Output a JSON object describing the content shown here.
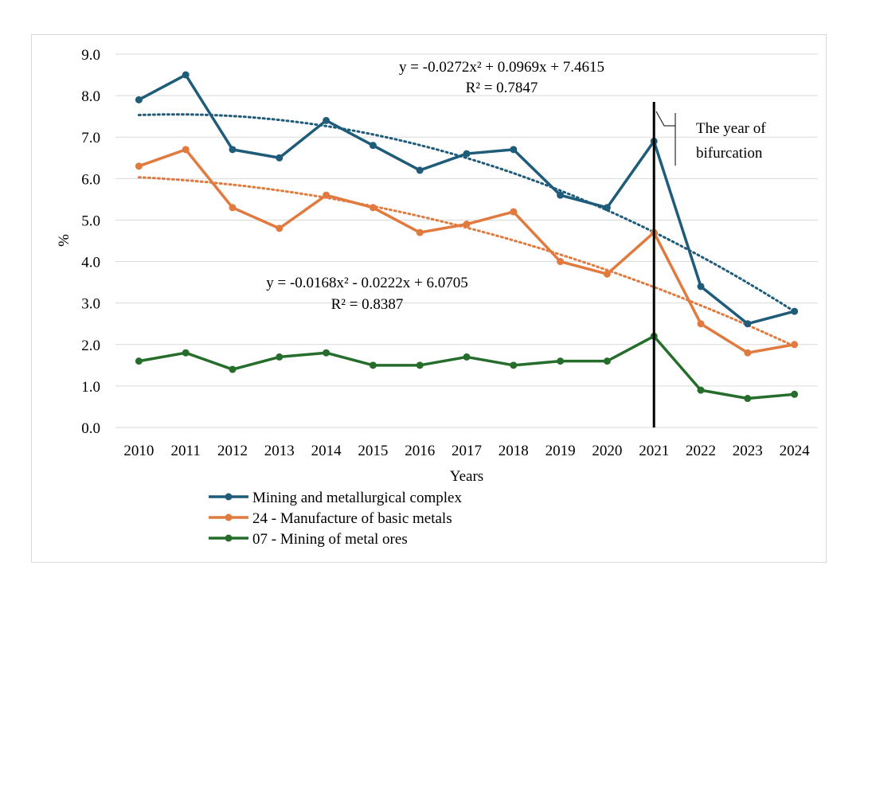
{
  "chart_data": {
    "type": "line",
    "categories": [
      "2010",
      "2011",
      "2012",
      "2013",
      "2014",
      "2015",
      "2016",
      "2017",
      "2018",
      "2019",
      "2020",
      "2021",
      "2022",
      "2023",
      "2024"
    ],
    "series": [
      {
        "name": "Mining and metallurgical complex",
        "color": "#1f5c7a",
        "values": [
          7.9,
          8.5,
          6.7,
          6.5,
          7.4,
          6.8,
          6.2,
          6.6,
          6.7,
          5.6,
          5.3,
          6.9,
          3.4,
          2.5,
          2.8
        ],
        "trend": {
          "type": "poly2",
          "a": -0.0272,
          "b": 0.0969,
          "c": 7.4615,
          "color": "#1f5c7a"
        }
      },
      {
        "name": "24 - Manufacture of basic metals",
        "color": "#e07a3f",
        "values": [
          6.3,
          6.7,
          5.3,
          4.8,
          5.6,
          5.3,
          4.7,
          4.9,
          5.2,
          4.0,
          3.7,
          4.7,
          2.5,
          1.8,
          2.0
        ],
        "trend": {
          "type": "poly2",
          "a": -0.0168,
          "b": -0.0222,
          "c": 6.0705,
          "color": "#e07a3f"
        }
      },
      {
        "name": "07 - Mining of metal ores",
        "color": "#256d2a",
        "values": [
          1.6,
          1.8,
          1.4,
          1.7,
          1.8,
          1.5,
          1.5,
          1.7,
          1.5,
          1.6,
          1.6,
          2.2,
          0.9,
          0.7,
          0.8
        ]
      }
    ],
    "ylim": [
      0,
      9
    ],
    "yticks": [
      "0.0",
      "1.0",
      "2.0",
      "3.0",
      "4.0",
      "5.0",
      "6.0",
      "7.0",
      "8.0",
      "9.0"
    ],
    "xlabel": "Years",
    "ylabel": "%",
    "grid": true,
    "legend_position": "bottom",
    "annotations": {
      "eq1_line1": "y = -0.0272x² + 0.0969x + 7.4615",
      "eq1_line2": "R² = 0.7847",
      "eq2_line1": "y = -0.0168x² - 0.0222x + 6.0705",
      "eq2_line2": "R² = 0.8387",
      "bifurcation_line1": "The year of",
      "bifurcation_line2": "bifurcation",
      "bifurcation_year": "2021"
    }
  }
}
